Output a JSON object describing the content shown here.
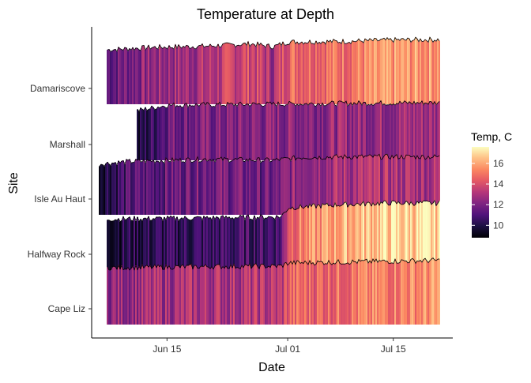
{
  "chart_data": {
    "type": "ridgeline",
    "title": "Temperature at Depth",
    "xlabel": "Date",
    "ylabel": "Site",
    "x_ticks": [
      "Jun 15",
      "Jul 01",
      "Jul 15"
    ],
    "x_tick_dates": [
      "2019-06-15",
      "2019-07-01",
      "2019-07-15"
    ],
    "xlim": [
      "2019-06-05",
      "2019-07-22"
    ],
    "sites": [
      {
        "name": "Damariscove",
        "start": "2019-06-07",
        "end": "2019-07-21",
        "temps": [
          {
            "date": "2019-06-07",
            "temp": 11.5
          },
          {
            "date": "2019-06-13",
            "temp": 12.5
          },
          {
            "date": "2019-06-20",
            "temp": 13.0
          },
          {
            "date": "2019-06-26",
            "temp": 14.0
          },
          {
            "date": "2019-06-29",
            "temp": 12.8
          },
          {
            "date": "2019-07-01",
            "temp": 14.8
          },
          {
            "date": "2019-07-08",
            "temp": 15.0
          },
          {
            "date": "2019-07-15",
            "temp": 15.6
          },
          {
            "date": "2019-07-21",
            "temp": 15.8
          }
        ]
      },
      {
        "name": "Marshall",
        "start": "2019-06-11",
        "end": "2019-07-21",
        "temps": [
          {
            "date": "2019-06-11",
            "temp": 9.5
          },
          {
            "date": "2019-06-15",
            "temp": 11.8
          },
          {
            "date": "2019-06-22",
            "temp": 12.0
          },
          {
            "date": "2019-07-01",
            "temp": 12.3
          },
          {
            "date": "2019-07-10",
            "temp": 12.6
          },
          {
            "date": "2019-07-21",
            "temp": 12.8
          }
        ]
      },
      {
        "name": "Isle Au Haut",
        "start": "2019-06-06",
        "end": "2019-07-21",
        "temps": [
          {
            "date": "2019-06-06",
            "temp": 10.0
          },
          {
            "date": "2019-06-10",
            "temp": 11.0
          },
          {
            "date": "2019-06-20",
            "temp": 12.0
          },
          {
            "date": "2019-06-29",
            "temp": 11.5
          },
          {
            "date": "2019-07-03",
            "temp": 12.8
          },
          {
            "date": "2019-07-10",
            "temp": 13.0
          },
          {
            "date": "2019-07-21",
            "temp": 13.0
          }
        ]
      },
      {
        "name": "Halfway Rock",
        "start": "2019-06-07",
        "end": "2019-07-21",
        "temps": [
          {
            "date": "2019-06-07",
            "temp": 10.0
          },
          {
            "date": "2019-06-20",
            "temp": 10.5
          },
          {
            "date": "2019-06-30",
            "temp": 11.0
          },
          {
            "date": "2019-07-01",
            "temp": 14.8
          },
          {
            "date": "2019-07-07",
            "temp": 16.0
          },
          {
            "date": "2019-07-14",
            "temp": 16.8
          },
          {
            "date": "2019-07-21",
            "temp": 16.8
          }
        ]
      },
      {
        "name": "Cape Liz",
        "start": "2019-06-07",
        "end": "2019-07-21",
        "temps": [
          {
            "date": "2019-06-07",
            "temp": 12.5
          },
          {
            "date": "2019-06-20",
            "temp": 13.0
          },
          {
            "date": "2019-06-30",
            "temp": 13.2
          },
          {
            "date": "2019-07-01",
            "temp": 14.5
          },
          {
            "date": "2019-07-10",
            "temp": 15.0
          },
          {
            "date": "2019-07-21",
            "temp": 15.6
          }
        ]
      }
    ],
    "legend": {
      "title": "Temp, C",
      "placement": "right",
      "range": [
        8.8,
        17.6
      ],
      "ticks": [
        10,
        12,
        14,
        16
      ],
      "colormap": "magma"
    },
    "grid": false
  }
}
